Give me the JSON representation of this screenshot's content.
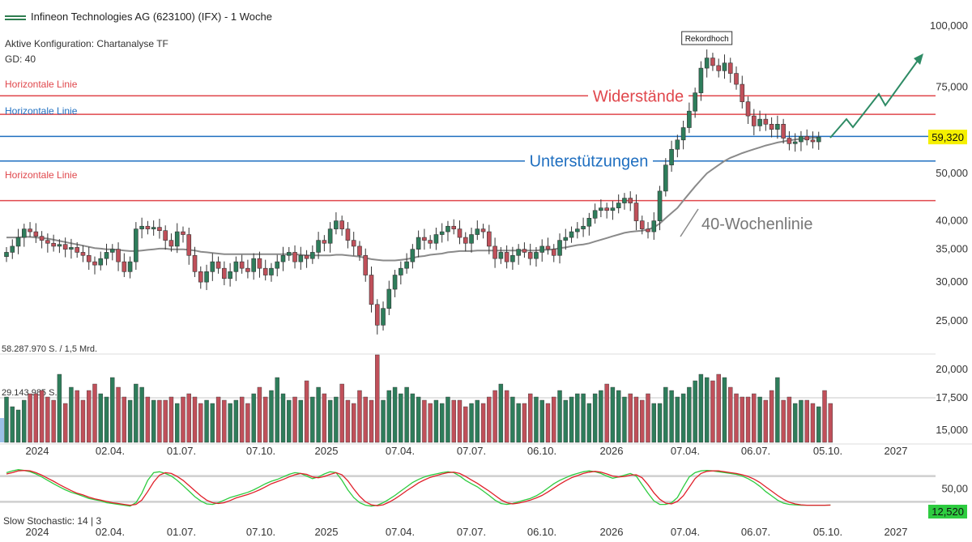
{
  "header": {
    "title": "Infineon Technologies AG (623100) (IFX) - 1 Woche",
    "config": "Aktive Konfiguration: Chartanalyse TF",
    "gd": "GD: 40"
  },
  "colors": {
    "up": "#2e7d5b",
    "down": "#c0505a",
    "resistance": "#e0474c",
    "support": "#1f6fc0",
    "ma": "#8a8a8a",
    "arrow": "#2e8b65",
    "price_label_bg": "#f5f000",
    "stoch_k": "#2ecc40",
    "stoch_d": "#e0202a"
  },
  "chart_data": [
    {
      "type": "candlestick",
      "scale": "log",
      "y_ticks": [
        25000,
        30000,
        35000,
        40000,
        50000,
        75000,
        100000
      ],
      "y_tick_labels": [
        "25,000",
        "30,000",
        "35,000",
        "40,000",
        "50,000",
        "75,000",
        "100,000"
      ],
      "x_tick_labels": [
        "2024",
        "02.04.",
        "01.07.",
        "07.10.",
        "2025",
        "07.04.",
        "07.07.",
        "06.10.",
        "2026",
        "07.04.",
        "06.07.",
        "05.10.",
        "2027"
      ],
      "last_price_label": "59,320",
      "last_price": 59.32,
      "horizontal_lines": [
        {
          "label": "Horizontale Linie",
          "value": 72.0,
          "color": "resistance"
        },
        {
          "label": "",
          "value": 66.0,
          "color": "resistance"
        },
        {
          "label": "Horizontale Linie",
          "value": 59.5,
          "color": "support"
        },
        {
          "label": "",
          "value": 53.0,
          "color": "support"
        },
        {
          "label": "Horizontale Linie",
          "value": 44.0,
          "color": "resistance"
        }
      ],
      "annotations": {
        "resistance": "Widerstände",
        "support": "Unterstützungen",
        "ma_label": "40-Wochenlinie",
        "record": "Rekordhoch"
      },
      "closes": [
        34.5,
        35.5,
        37.0,
        38.5,
        38.0,
        37.2,
        36.5,
        36.0,
        35.5,
        35.8,
        35.0,
        35.3,
        34.5,
        34.0,
        33.0,
        32.5,
        33.5,
        34.5,
        35.0,
        33.0,
        31.5,
        33.0,
        38.5,
        39.0,
        38.5,
        38.8,
        38.2,
        36.5,
        35.5,
        38.0,
        37.5,
        34.0,
        31.5,
        30.0,
        31.5,
        33.0,
        32.0,
        30.5,
        31.5,
        33.0,
        32.0,
        31.5,
        33.5,
        32.0,
        31.0,
        32.0,
        33.0,
        34.0,
        34.5,
        33.0,
        34.0,
        33.5,
        34.5,
        36.5,
        36.0,
        38.5,
        40.0,
        38.5,
        36.5,
        35.5,
        34.0,
        31.0,
        27.0,
        24.5,
        26.5,
        29.0,
        31.0,
        32.0,
        33.0,
        35.0,
        37.0,
        36.5,
        36.0,
        37.5,
        38.0,
        39.0,
        38.5,
        37.0,
        36.0,
        37.5,
        38.5,
        38.0,
        35.5,
        33.5,
        34.5,
        33.0,
        34.0,
        35.0,
        34.5,
        33.5,
        34.5,
        35.5,
        35.0,
        34.0,
        36.5,
        37.0,
        38.0,
        38.5,
        39.0,
        40.5,
        42.0,
        42.5,
        42.0,
        42.5,
        43.5,
        44.5,
        43.5,
        40.0,
        38.5,
        38.0,
        40.0,
        46.0,
        52.0,
        56.0,
        58.5,
        62.0,
        67.0,
        73.0,
        82.0,
        86.0,
        83.0,
        81.0,
        84.0,
        80.0,
        76.0,
        70.0,
        65.5,
        62.5,
        64.5,
        63.0,
        61.5,
        63.0,
        59.0,
        57.5,
        58.0,
        59.5,
        58.5,
        58.0,
        59.32
      ],
      "ma40": [
        37.0,
        37.0,
        37.0,
        37.1,
        37.1,
        37.0,
        36.9,
        36.8,
        36.6,
        36.4,
        36.2,
        36.0,
        35.8,
        35.6,
        35.4,
        35.2,
        35.1,
        35.0,
        35.0,
        34.9,
        34.8,
        34.7,
        34.7,
        34.8,
        34.9,
        35.0,
        35.1,
        35.1,
        35.0,
        35.0,
        35.0,
        34.9,
        34.8,
        34.6,
        34.5,
        34.4,
        34.3,
        34.2,
        34.2,
        34.2,
        34.2,
        34.2,
        34.2,
        34.2,
        34.2,
        34.2,
        34.2,
        34.2,
        34.2,
        34.2,
        34.1,
        34.0,
        34.0,
        34.0,
        34.0,
        34.0,
        34.1,
        34.1,
        34.0,
        33.9,
        33.8,
        33.6,
        33.4,
        33.3,
        33.2,
        33.2,
        33.2,
        33.3,
        33.4,
        33.6,
        33.8,
        33.9,
        34.1,
        34.2,
        34.3,
        34.5,
        34.6,
        34.7,
        34.7,
        34.7,
        34.8,
        34.8,
        34.8,
        34.8,
        34.8,
        34.8,
        34.8,
        34.8,
        34.8,
        34.8,
        34.8,
        34.9,
        34.9,
        35.0,
        35.2,
        35.3,
        35.5,
        35.7,
        35.8,
        36.0,
        36.3,
        36.6,
        36.9,
        37.2,
        37.5,
        37.8,
        38.0,
        38.1,
        38.2,
        38.4,
        38.8,
        39.5,
        40.5,
        41.5,
        42.5,
        44.0,
        45.5,
        47.0,
        48.5,
        50.0,
        51.0,
        52.0,
        53.0,
        53.8,
        54.4,
        55.0,
        55.5,
        56.0,
        56.5,
        57.0,
        57.4,
        57.8,
        58.1,
        58.4,
        58.6,
        58.8,
        59.0,
        59.1,
        59.2
      ]
    },
    {
      "type": "bar",
      "name": "volume",
      "scale_labels": [
        "58.287.970 S. / 1,5 Mrd.",
        "29.143.985 S."
      ],
      "right_ticks": [
        20000,
        17500,
        15000
      ],
      "right_tick_labels": [
        "20,000",
        "17,500",
        "15,000"
      ],
      "values": [
        14,
        11,
        10,
        13,
        15,
        15,
        16,
        14,
        13,
        21,
        12,
        17,
        16,
        13,
        16,
        18,
        15,
        14,
        20,
        17,
        14,
        13,
        18,
        17,
        14,
        13,
        13,
        13,
        14,
        12,
        14,
        15,
        14,
        12,
        13,
        12,
        14,
        13,
        12,
        13,
        14,
        12,
        15,
        17,
        14,
        16,
        20,
        15,
        13,
        14,
        13,
        19,
        14,
        17,
        15,
        13,
        14,
        18,
        13,
        12,
        16,
        14,
        13,
        27,
        13,
        16,
        17,
        15,
        17,
        15,
        14,
        13,
        12,
        13,
        12,
        14,
        13,
        13,
        11,
        12,
        13,
        12,
        14,
        16,
        18,
        16,
        14,
        12,
        12,
        15,
        14,
        13,
        12,
        14,
        16,
        13,
        14,
        15,
        15,
        12,
        15,
        16,
        18,
        17,
        16,
        14,
        15,
        14,
        13,
        15,
        12,
        12,
        17,
        16,
        14,
        15,
        17,
        19,
        21,
        20,
        19,
        21,
        20,
        17,
        15,
        14,
        14,
        15,
        14,
        13,
        16,
        20,
        13,
        14,
        12,
        13,
        13,
        12,
        11,
        16,
        12
      ]
    },
    {
      "type": "line",
      "name": "stochastic",
      "label": "Slow Stochastic: 14 | 3",
      "right_tick_label": "50,00",
      "last_value_label": "12,520",
      "k": [
        88,
        92,
        95,
        93,
        90,
        85,
        78,
        70,
        62,
        55,
        48,
        42,
        38,
        33,
        28,
        25,
        22,
        18,
        16,
        14,
        12,
        10,
        18,
        40,
        70,
        88,
        90,
        86,
        80,
        70,
        58,
        45,
        32,
        22,
        15,
        14,
        18,
        24,
        30,
        34,
        38,
        42,
        48,
        55,
        62,
        68,
        72,
        78,
        84,
        88,
        86,
        80,
        74,
        78,
        85,
        90,
        88,
        70,
        48,
        30,
        18,
        12,
        10,
        12,
        18,
        26,
        35,
        45,
        55,
        65,
        72,
        78,
        82,
        85,
        88,
        90,
        88,
        80,
        70,
        62,
        55,
        45,
        35,
        24,
        16,
        14,
        16,
        20,
        24,
        28,
        34,
        42,
        52,
        62,
        70,
        76,
        82,
        86,
        90,
        92,
        90,
        86,
        80,
        75,
        78,
        82,
        86,
        80,
        60,
        40,
        22,
        14,
        14,
        18,
        30,
        55,
        78,
        88,
        92,
        93,
        92,
        90,
        88,
        86,
        84,
        80,
        74,
        66,
        56,
        44,
        34,
        24,
        17,
        14,
        13,
        12,
        12,
        12,
        12,
        12,
        12.5
      ],
      "d": [
        85,
        88,
        92,
        93,
        92,
        88,
        82,
        75,
        68,
        60,
        53,
        46,
        40,
        36,
        31,
        27,
        24,
        21,
        18,
        16,
        14,
        12,
        14,
        24,
        44,
        66,
        82,
        88,
        86,
        79,
        70,
        58,
        46,
        34,
        24,
        18,
        16,
        18,
        23,
        29,
        33,
        37,
        42,
        48,
        55,
        62,
        67,
        72,
        78,
        83,
        86,
        84,
        78,
        76,
        79,
        84,
        88,
        83,
        69,
        50,
        33,
        20,
        13,
        11,
        13,
        19,
        27,
        36,
        46,
        55,
        64,
        71,
        77,
        81,
        85,
        88,
        89,
        86,
        79,
        71,
        63,
        54,
        45,
        35,
        25,
        18,
        15,
        17,
        20,
        24,
        29,
        35,
        43,
        52,
        61,
        69,
        76,
        81,
        86,
        89,
        91,
        89,
        85,
        80,
        78,
        79,
        82,
        83,
        76,
        60,
        41,
        26,
        17,
        15,
        21,
        34,
        54,
        74,
        86,
        91,
        92,
        92,
        90,
        88,
        86,
        83,
        79,
        73,
        65,
        55,
        45,
        35,
        26,
        19,
        15,
        13,
        12,
        12,
        12,
        12,
        12.3
      ]
    }
  ]
}
